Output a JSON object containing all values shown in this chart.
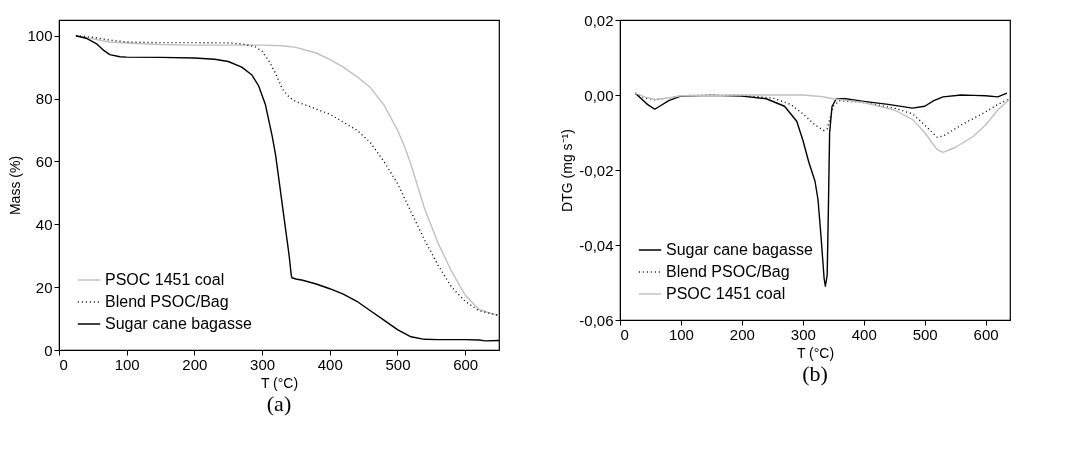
{
  "chart_data": [
    {
      "type": "line",
      "xlabel": "T (°C)",
      "ylabel": "Mass (%)",
      "annotations": [
        "(a)"
      ],
      "xlim": [
        0,
        650
      ],
      "ylim": [
        0,
        105
      ],
      "xticks": [
        0,
        100,
        200,
        300,
        400,
        500,
        600
      ],
      "yticks": [
        0,
        20,
        40,
        60,
        80,
        100
      ],
      "grid": false,
      "legend": "bottom left",
      "series": [
        {
          "name": "PSOC 1451 coal",
          "color": "#c0c0c0",
          "line_style": "solid",
          "x": [
            25,
            50,
            75,
            100,
            150,
            200,
            300,
            330,
            350,
            380,
            400,
            420,
            440,
            460,
            480,
            500,
            510,
            520,
            530,
            540,
            560,
            580,
            600,
            620,
            640,
            650
          ],
          "values": [
            100,
            99,
            98,
            97.7,
            97.2,
            97,
            97,
            96.8,
            96.3,
            94.5,
            92.5,
            90,
            87,
            83.5,
            78,
            70,
            65,
            59,
            52,
            45,
            34,
            25,
            17.5,
            13,
            11.5,
            11
          ]
        },
        {
          "name": "Blend PSOC/Bag",
          "color": "#000000",
          "line_style": "dotted",
          "x": [
            25,
            50,
            75,
            100,
            150,
            200,
            250,
            270,
            290,
            300,
            310,
            320,
            330,
            340,
            350,
            370,
            400,
            420,
            440,
            460,
            480,
            500,
            520,
            540,
            560,
            580,
            600,
            620,
            640,
            650
          ],
          "values": [
            100,
            99.5,
            98.6,
            98,
            97.8,
            97.8,
            97.7,
            97.4,
            96.5,
            95,
            92,
            88,
            83,
            80.5,
            79,
            77.5,
            75,
            72.5,
            70,
            66,
            60,
            53,
            44,
            35,
            27,
            20,
            15.5,
            12.5,
            11.5,
            11
          ]
        },
        {
          "name": "Sugar cane bagasse",
          "color": "#000000",
          "line_style": "solid",
          "x": [
            25,
            40,
            55,
            65,
            75,
            90,
            100,
            150,
            200,
            230,
            250,
            270,
            285,
            295,
            305,
            315,
            320,
            330,
            335,
            340,
            343,
            344,
            350,
            360,
            380,
            400,
            420,
            440,
            460,
            480,
            500,
            520,
            540,
            560,
            600,
            620,
            630,
            650
          ],
          "values": [
            100,
            99.2,
            97.5,
            95.5,
            94,
            93.3,
            93.2,
            93.1,
            92.9,
            92.5,
            91.8,
            90,
            87.5,
            84,
            78,
            68,
            62,
            46,
            38,
            30,
            24,
            23,
            22.6,
            22.2,
            21,
            19.5,
            17.8,
            15.5,
            12.5,
            9.5,
            6.5,
            4.2,
            3.4,
            3.3,
            3.3,
            3.2,
            2.9,
            3
          ]
        }
      ]
    },
    {
      "type": "line",
      "xlabel": "T (°C)",
      "ylabel": "DTG (mg s⁻¹)",
      "annotations": [
        "(b)"
      ],
      "xlim": [
        0,
        640
      ],
      "ylim": [
        -0.06,
        0.02
      ],
      "xticks": [
        0,
        100,
        200,
        300,
        400,
        500,
        600
      ],
      "yticks": [
        {
          "value": -0.06,
          "label": "-0,06"
        },
        {
          "value": -0.04,
          "label": "-0,04"
        },
        {
          "value": -0.02,
          "label": "-0,02"
        },
        {
          "value": 0,
          "label": "0,00"
        },
        {
          "value": 0.02,
          "label": "0,02"
        }
      ],
      "grid": false,
      "legend": "bottom left",
      "series": [
        {
          "name": "Sugar cane bagasse",
          "color": "#000000",
          "line_style": "solid",
          "x": [
            25,
            35,
            45,
            57,
            65,
            80,
            100,
            150,
            200,
            240,
            270,
            290,
            300,
            310,
            320,
            325,
            330,
            335,
            337,
            340,
            342,
            344,
            348,
            355,
            370,
            400,
            440,
            480,
            500,
            515,
            530,
            560,
            580,
            600,
            620,
            635
          ],
          "values": [
            0.0005,
            -0.001,
            -0.0025,
            -0.0038,
            -0.003,
            -0.0015,
            -0.0003,
            -0.0001,
            -0.0003,
            -0.001,
            -0.003,
            -0.007,
            -0.012,
            -0.018,
            -0.023,
            -0.028,
            -0.038,
            -0.049,
            -0.051,
            -0.048,
            -0.03,
            -0.01,
            -0.003,
            -0.001,
            -0.001,
            -0.0017,
            -0.0025,
            -0.0035,
            -0.003,
            -0.0015,
            -0.0005,
            0,
            -0.0001,
            -0.0002,
            -0.0005,
            0.0005
          ]
        },
        {
          "name": "Blend PSOC/Bag",
          "color": "#000000",
          "line_style": "dotted",
          "x": [
            25,
            40,
            57,
            80,
            100,
            150,
            200,
            250,
            280,
            300,
            320,
            335,
            340,
            345,
            350,
            360,
            400,
            450,
            480,
            500,
            520,
            530,
            560,
            600,
            620,
            640
          ],
          "values": [
            0.0005,
            -0.0007,
            -0.0013,
            -0.0008,
            -0.0002,
            0,
            -0.0001,
            -0.0008,
            -0.0025,
            -0.005,
            -0.008,
            -0.0095,
            -0.009,
            -0.006,
            -0.003,
            -0.0015,
            -0.002,
            -0.0035,
            -0.005,
            -0.008,
            -0.0112,
            -0.011,
            -0.008,
            -0.0045,
            -0.0025,
            -0.001
          ]
        },
        {
          "name": "PSOC 1451 coal",
          "color": "#c0c0c0",
          "line_style": "solid",
          "x": [
            25,
            40,
            57,
            80,
            100,
            200,
            300,
            330,
            350,
            400,
            450,
            480,
            500,
            520,
            530,
            550,
            580,
            600,
            620,
            640
          ],
          "values": [
            0.0005,
            -0.0005,
            -0.0012,
            -0.0008,
            -0.0002,
            0,
            0,
            -0.0004,
            -0.001,
            -0.002,
            -0.004,
            -0.0065,
            -0.01,
            -0.0145,
            -0.0153,
            -0.014,
            -0.011,
            -0.008,
            -0.004,
            -0.001
          ]
        }
      ]
    }
  ]
}
